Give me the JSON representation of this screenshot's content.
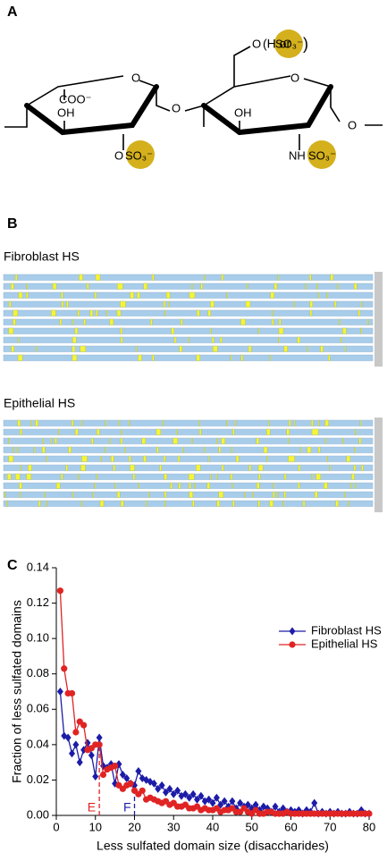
{
  "panel_labels": [
    "A",
    "B",
    "C"
  ],
  "structure": {
    "left_carboxyl": "COO⁻",
    "left_hydroxyl": "OH",
    "left_sulfate_o": "O",
    "left_sulfate": "SO₃⁻",
    "left_ring_o": "O",
    "glycosidic_o": "O",
    "right_ring_o": "O",
    "right_c6_o": "O",
    "right_c6_paren_open": "(H or",
    "right_c6_sulfate": "SO₃⁻",
    "right_c6_paren_close": ")",
    "right_hydroxyl": "OH",
    "right_nh": "NH",
    "right_n_sulfate": "SO₃⁻",
    "right_end_o": "O"
  },
  "sequences": {
    "fibroblast_title": "Fibroblast HS",
    "epithelial_title": "Epithelial HS"
  },
  "chart_data": {
    "type": "line",
    "xlabel": "Less sulfated domain size (disaccharides)",
    "ylabel": "Fraction of less sulfated domains",
    "x": [
      1,
      2,
      3,
      4,
      5,
      6,
      7,
      8,
      9,
      10,
      11,
      12,
      13,
      14,
      15,
      16,
      17,
      18,
      19,
      20,
      21,
      22,
      23,
      24,
      25,
      26,
      27,
      28,
      29,
      30,
      31,
      32,
      33,
      34,
      35,
      36,
      37,
      38,
      39,
      40,
      41,
      42,
      43,
      44,
      45,
      46,
      47,
      48,
      49,
      50,
      51,
      52,
      53,
      54,
      55,
      56,
      57,
      58,
      59,
      60,
      61,
      62,
      63,
      64,
      65,
      66,
      67,
      68,
      69,
      70,
      71,
      72,
      73,
      74,
      75,
      76,
      77,
      78,
      79,
      80
    ],
    "series": [
      {
        "name": "Fibroblast HS",
        "color": "#1c1ca8",
        "marker": "diamond",
        "values": [
          0.07,
          0.045,
          0.044,
          0.035,
          0.04,
          0.03,
          0.037,
          0.041,
          0.034,
          0.022,
          0.044,
          0.028,
          0.027,
          0.029,
          0.018,
          0.029,
          0.023,
          0.021,
          0.018,
          0.017,
          0.025,
          0.021,
          0.02,
          0.019,
          0.018,
          0.015,
          0.017,
          0.013,
          0.015,
          0.012,
          0.014,
          0.011,
          0.012,
          0.01,
          0.012,
          0.009,
          0.011,
          0.008,
          0.009,
          0.007,
          0.01,
          0.006,
          0.008,
          0.005,
          0.008,
          0.004,
          0.007,
          0.005,
          0.006,
          0.004,
          0.006,
          0.003,
          0.005,
          0.004,
          0.002,
          0.005,
          0.002,
          0.004,
          0.002,
          0.003,
          0.002,
          0.003,
          0.001,
          0.003,
          0.002,
          0.007,
          0.001,
          0.002,
          0.001,
          0.002,
          0.001,
          0.002,
          0.001,
          0.001,
          0.002,
          0.001,
          0.001,
          0.003,
          0.001,
          0.001
        ]
      },
      {
        "name": "Epithelial HS",
        "color": "#e02424",
        "marker": "circle",
        "values": [
          0.127,
          0.083,
          0.069,
          0.069,
          0.047,
          0.053,
          0.051,
          0.037,
          0.038,
          0.04,
          0.04,
          0.023,
          0.026,
          0.027,
          0.028,
          0.017,
          0.015,
          0.017,
          0.018,
          0.014,
          0.012,
          0.014,
          0.009,
          0.01,
          0.009,
          0.008,
          0.007,
          0.008,
          0.006,
          0.007,
          0.005,
          0.005,
          0.006,
          0.004,
          0.004,
          0.005,
          0.003,
          0.004,
          0.003,
          0.003,
          0.004,
          0.002,
          0.003,
          0.003,
          0.004,
          0.002,
          0.002,
          0.004,
          0.002,
          0.001,
          0.003,
          0.001,
          0.001,
          0.002,
          0.002,
          0.001,
          0.001,
          0.001,
          0.002,
          0.001,
          0.001,
          0.001,
          0.001,
          0.001,
          0.001,
          0.001,
          0.001,
          0.001,
          0.001,
          0.001,
          0.001,
          0.001,
          0.001,
          0.001,
          0.001,
          0.001,
          0.001,
          0.001,
          0.001,
          0.001
        ]
      }
    ],
    "xlim": [
      0,
      80
    ],
    "xticks": [
      0,
      10,
      20,
      30,
      40,
      50,
      60,
      70,
      80
    ],
    "ylim": [
      0,
      0.14
    ],
    "yticks": [
      {
        "value": 0,
        "label": "0.00"
      },
      0.02,
      0.04,
      0.06,
      0.08,
      {
        "value": 0.1,
        "label": "0.10"
      },
      0.12,
      0.14
    ],
    "legend": "upper right",
    "annotations": [
      {
        "text": "E",
        "x": 11,
        "series": 1,
        "color": "#e02424"
      },
      {
        "text": "F",
        "x": 20,
        "series": 0,
        "color": "#1c1ca8"
      }
    ]
  }
}
